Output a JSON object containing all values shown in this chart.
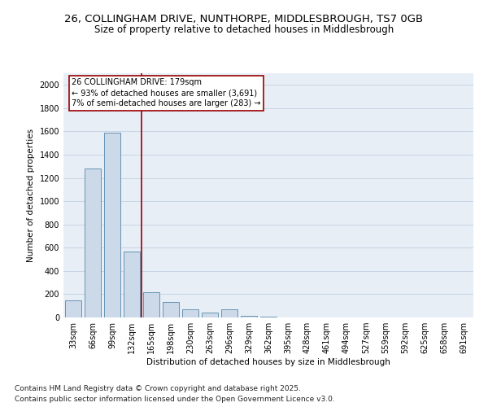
{
  "title_line1": "26, COLLINGHAM DRIVE, NUNTHORPE, MIDDLESBROUGH, TS7 0GB",
  "title_line2": "Size of property relative to detached houses in Middlesbrough",
  "xlabel": "Distribution of detached houses by size in Middlesbrough",
  "ylabel": "Number of detached properties",
  "categories": [
    "33sqm",
    "66sqm",
    "99sqm",
    "132sqm",
    "165sqm",
    "198sqm",
    "230sqm",
    "263sqm",
    "296sqm",
    "329sqm",
    "362sqm",
    "395sqm",
    "428sqm",
    "461sqm",
    "494sqm",
    "527sqm",
    "559sqm",
    "592sqm",
    "625sqm",
    "658sqm",
    "691sqm"
  ],
  "values": [
    150,
    1280,
    1590,
    570,
    215,
    130,
    70,
    40,
    70,
    15,
    5,
    0,
    0,
    0,
    0,
    0,
    0,
    0,
    0,
    0,
    0
  ],
  "bar_color": "#ccd9e8",
  "bar_edge_color": "#5588aa",
  "vline_x": 3.5,
  "vline_color": "#990000",
  "annotation_text": "26 COLLINGHAM DRIVE: 179sqm\n← 93% of detached houses are smaller (3,691)\n7% of semi-detached houses are larger (283) →",
  "annotation_box_color": "#ffffff",
  "annotation_box_edge": "#990000",
  "ylim": [
    0,
    2100
  ],
  "yticks": [
    0,
    200,
    400,
    600,
    800,
    1000,
    1200,
    1400,
    1600,
    1800,
    2000
  ],
  "grid_color": "#c8d4e4",
  "background_color": "#e8eef6",
  "footer_line1": "Contains HM Land Registry data © Crown copyright and database right 2025.",
  "footer_line2": "Contains public sector information licensed under the Open Government Licence v3.0.",
  "title_fontsize": 9.5,
  "subtitle_fontsize": 8.5,
  "axis_label_fontsize": 7.5,
  "tick_fontsize": 7,
  "footer_fontsize": 6.5,
  "ann_fontsize": 7
}
